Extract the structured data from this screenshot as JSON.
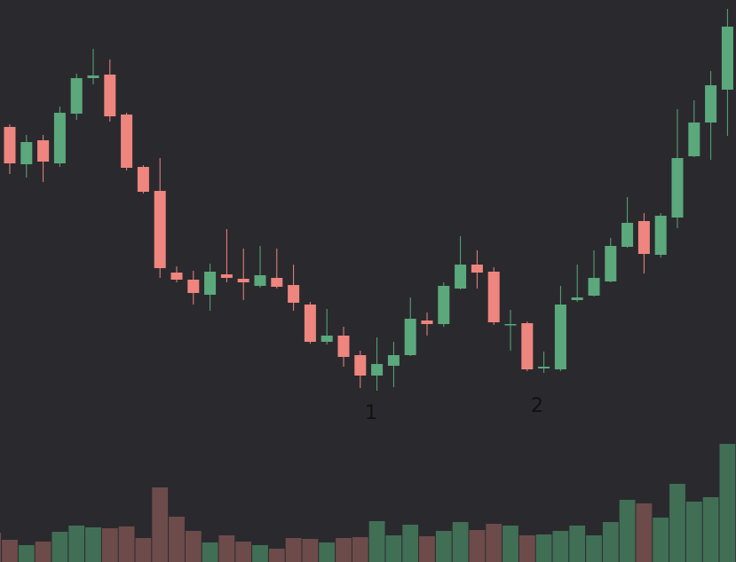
{
  "chart_data": {
    "type": "candlestick",
    "categories": [
      null,
      null,
      null,
      null,
      null,
      null,
      null,
      null,
      null,
      null,
      null,
      null,
      null,
      null,
      null,
      null,
      null,
      null,
      null,
      null,
      null,
      null,
      null,
      null,
      null,
      null,
      null,
      null,
      null,
      null,
      null,
      null,
      null,
      null,
      null,
      null,
      null,
      null,
      null,
      null,
      null,
      null,
      null,
      null,
      null
    ],
    "open": [
      483,
      490,
      448,
      475,
      449,
      505,
      545,
      549,
      504,
      445,
      418,
      326,
      318,
      301,
      324,
      319,
      311,
      320,
      312,
      290,
      248,
      255,
      233,
      210,
      221,
      233,
      272,
      268,
      308,
      335,
      327,
      267,
      269,
      218,
      217,
      295,
      300,
      316,
      355,
      384,
      346,
      388,
      457,
      495,
      532
    ],
    "high": [
      488,
      493,
      481,
      481,
      513,
      550,
      578,
      566,
      506,
      447,
      455,
      333,
      328,
      336,
      375,
      353,
      356,
      353,
      335,
      293,
      285,
      265,
      238,
      253,
      248,
      298,
      281,
      315,
      367,
      351,
      332,
      284,
      271,
      237,
      311,
      335,
      351,
      365,
      411,
      393,
      393,
      510,
      520,
      553,
      623
    ],
    "low": [
      463,
      437,
      433,
      428,
      445,
      498,
      538,
      496,
      441,
      415,
      320,
      315,
      290,
      283,
      315,
      295,
      309,
      308,
      283,
      246,
      245,
      220,
      196,
      193,
      197,
      232,
      255,
      265,
      307,
      308,
      267,
      238,
      215,
      213,
      215,
      293,
      299,
      315,
      354,
      325,
      343,
      376,
      456,
      453,
      480
    ],
    "close": [
      468,
      449,
      473,
      451,
      506,
      545,
      548,
      502,
      444,
      417,
      331,
      318,
      303,
      327,
      320,
      315,
      323,
      310,
      292,
      248,
      255,
      231,
      210,
      223,
      233,
      274,
      268,
      311,
      335,
      326,
      270,
      268,
      217,
      220,
      290,
      298,
      320,
      356,
      382,
      347,
      390,
      455,
      495,
      537,
      603
    ],
    "volumes": [
      33,
      25,
      19,
      23,
      34,
      41,
      39,
      38,
      40,
      27,
      84,
      51,
      35,
      22,
      30,
      23,
      19,
      15,
      27,
      26,
      22,
      27,
      28,
      46,
      30,
      42,
      29,
      35,
      45,
      36,
      43,
      41,
      30,
      31,
      35,
      41,
      30,
      45,
      70,
      66,
      50,
      88,
      68,
      73,
      133
    ],
    "ylim": [
      0,
      633
    ],
    "volume_ylim": [
      0,
      633
    ],
    "up_color": "#5ba87c",
    "down_color": "#ee857e",
    "volume_up_color": "#416f55",
    "volume_down_color": "#6d4b4b",
    "annotations": [
      "1",
      "2"
    ]
  }
}
